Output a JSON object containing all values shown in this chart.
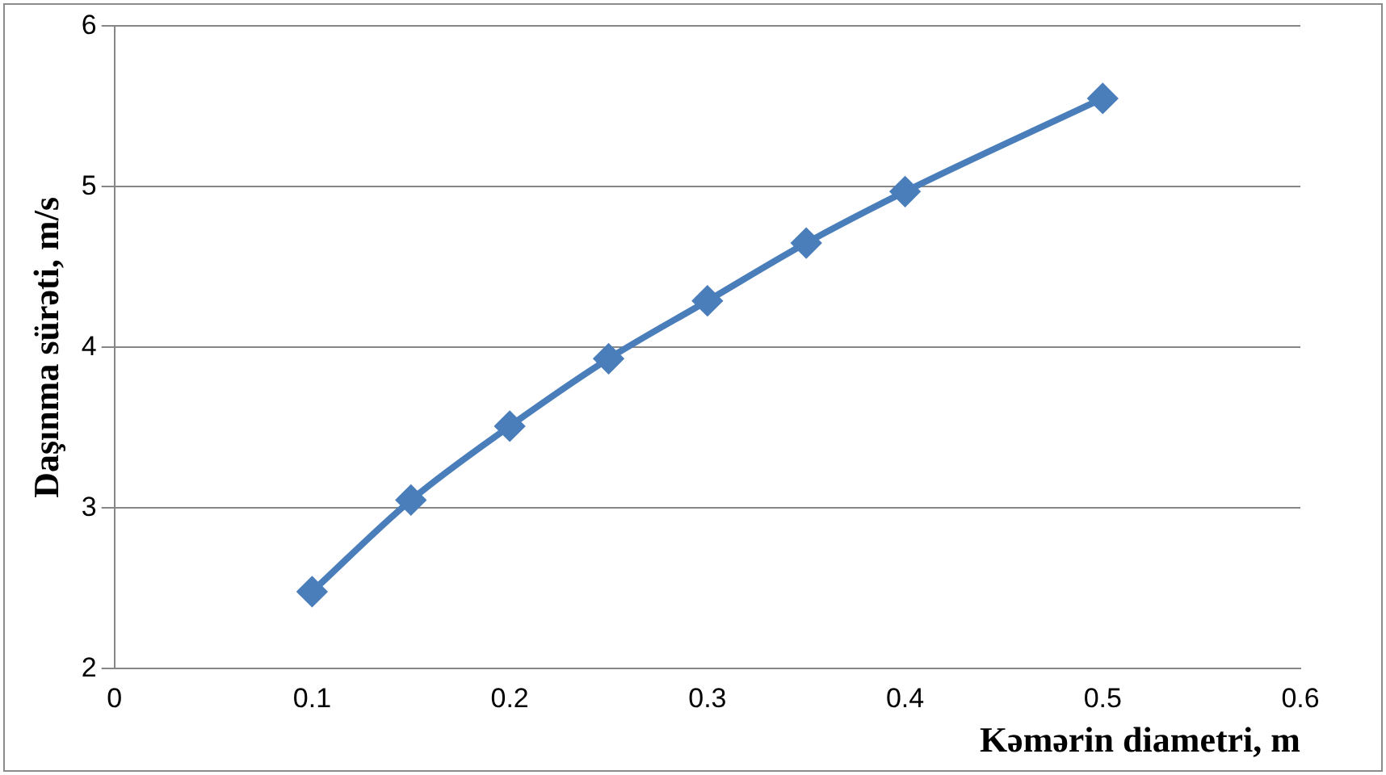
{
  "chart_data": {
    "type": "line",
    "xlabel": "Kəmərin diametri, m",
    "ylabel": "Daşınma sürəti, m/s",
    "x": [
      0.1,
      0.15,
      0.2,
      0.25,
      0.3,
      0.35,
      0.4,
      0.5
    ],
    "series": [
      {
        "color": "#4a7ebb",
        "values": [
          2.48,
          3.05,
          3.51,
          3.93,
          4.29,
          4.65,
          4.97,
          5.55
        ]
      }
    ],
    "xlim": [
      0,
      0.6
    ],
    "xticks": [
      0,
      0.1,
      0.2,
      0.3,
      0.4,
      0.5,
      0.6
    ],
    "ylim": [
      2,
      6
    ],
    "yticks": [
      2,
      3,
      4,
      5,
      6
    ],
    "grid": "y",
    "legend": false,
    "marker": "diamond",
    "line_style": "solid"
  }
}
